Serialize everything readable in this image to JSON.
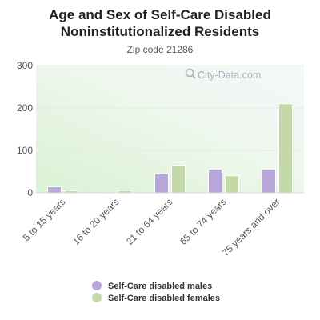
{
  "chart_data": {
    "type": "bar",
    "title_lines": [
      "Age and Sex of Self-Care Disabled",
      "Noninstitutionalized Residents"
    ],
    "subtitle": "Zip code 21286",
    "categories": [
      "5 to 15 years",
      "16 to 20 years",
      "21 to 64 years",
      "65 to 74 years",
      "75 years and over"
    ],
    "series": [
      {
        "name": "Self-Care disabled males",
        "color": "#b8a5d9",
        "values": [
          14,
          0,
          45,
          56,
          56
        ]
      },
      {
        "name": "Self-Care disabled females",
        "color": "#c3d9a8",
        "values": [
          5,
          5,
          65,
          40,
          210
        ]
      }
    ],
    "y_ticks": [
      "0",
      "100",
      "200",
      "300"
    ],
    "ylim": [
      0,
      300
    ],
    "grid": true,
    "legend_position": "bottom"
  },
  "watermark": {
    "text": "City-Data.com",
    "icon": "magnifier-icon"
  }
}
